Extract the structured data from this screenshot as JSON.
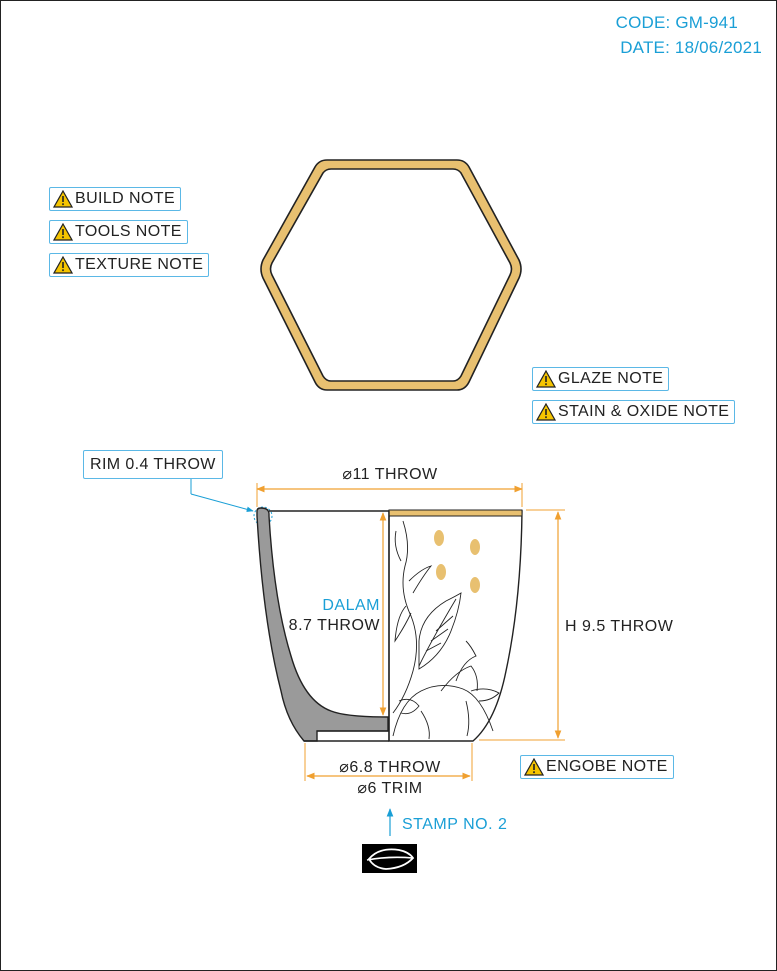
{
  "header": {
    "code": "CODE: GM-941",
    "date": "DATE: 18/06/2021"
  },
  "notes_left": [
    "BUILD NOTE",
    "TOOLS NOTE",
    "TEXTURE NOTE"
  ],
  "notes_right": [
    "GLAZE NOTE",
    "STAIN & OXIDE NOTE"
  ],
  "engobe_note": "ENGOBE NOTE",
  "rim_callout": "RIM 0.4 THROW",
  "dimensions": {
    "top_diameter": "⌀11 THROW",
    "inner_label_1": "DALAM",
    "inner_label_2": "8.7 THROW",
    "height": "H 9.5 THROW",
    "foot_diameter": "⌀6.8 THROW",
    "trim_diameter": "⌀6 TRIM"
  },
  "stamp_label": "STAMP NO. 2",
  "icons": {
    "warning": "warning-triangle-icon",
    "stamp": "leaf-stamp-icon"
  },
  "colors": {
    "accent": "#1a9fd6",
    "dimension": "#f0a030",
    "glaze": "#e8c070",
    "section": "#9a9a9a"
  }
}
